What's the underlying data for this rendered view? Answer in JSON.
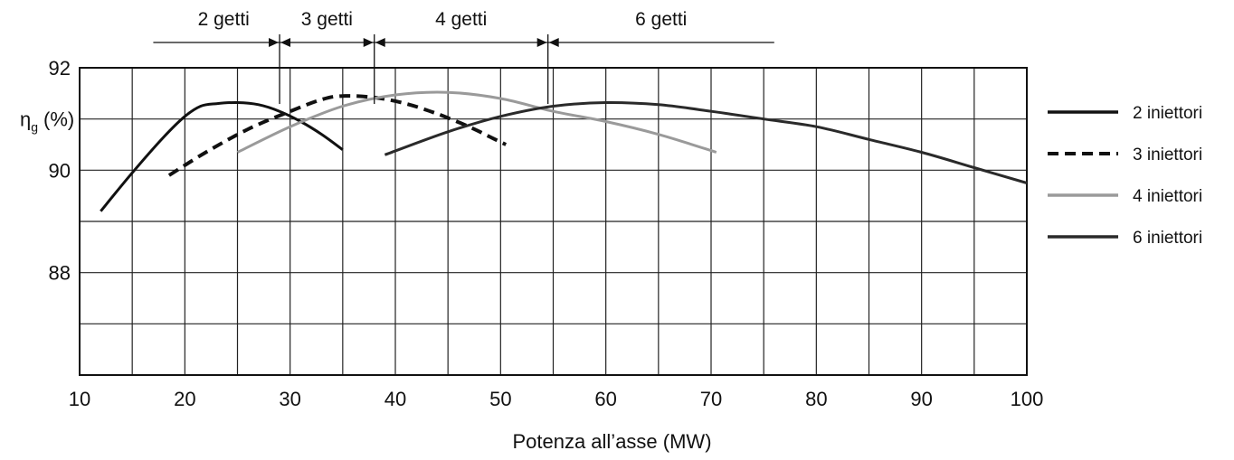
{
  "chart_data": {
    "type": "line",
    "title": "",
    "xlabel": "Potenza all’asse (MW)",
    "ylabel_main": "η",
    "ylabel_sub": "g",
    "ylabel_unit": "(%)",
    "xlim": [
      10,
      100
    ],
    "ylim": [
      86,
      92
    ],
    "x_ticks": [
      10,
      20,
      30,
      40,
      50,
      60,
      70,
      80,
      90,
      100
    ],
    "x_tick_labels": [
      "10",
      "20",
      "30",
      "40",
      "50",
      "60",
      "70",
      "80",
      "90",
      "100"
    ],
    "y_ticks": [
      88,
      90,
      92
    ],
    "y_tick_labels": [
      "88",
      "90",
      "92"
    ],
    "grid": true,
    "legend_position": "right",
    "series": [
      {
        "name": "2 iniettori",
        "style": "solid",
        "color": "#111111",
        "x": [
          12,
          15,
          18,
          20,
          21.5,
          23,
          25,
          27,
          29,
          31,
          33,
          35
        ],
        "y": [
          89.2,
          89.95,
          90.65,
          91.05,
          91.25,
          91.3,
          91.32,
          91.28,
          91.15,
          90.95,
          90.7,
          90.4
        ]
      },
      {
        "name": "3 iniettori",
        "style": "dashed",
        "color": "#111111",
        "x": [
          18.5,
          22,
          26,
          30,
          33,
          35,
          38,
          41,
          44,
          47,
          49,
          50.5
        ],
        "y": [
          89.9,
          90.35,
          90.8,
          91.15,
          91.38,
          91.45,
          91.42,
          91.3,
          91.1,
          90.85,
          90.65,
          90.5
        ]
      },
      {
        "name": "4 iniettori",
        "style": "solid",
        "color": "#9a9a9a",
        "x": [
          25,
          30,
          35,
          40,
          45,
          50,
          55,
          60,
          65,
          70.5
        ],
        "y": [
          90.35,
          90.85,
          91.25,
          91.47,
          91.52,
          91.4,
          91.15,
          90.95,
          90.7,
          90.35
        ]
      },
      {
        "name": "6 iniettori",
        "style": "solid",
        "color": "#2a2a2a",
        "x": [
          39,
          45,
          50,
          55,
          60,
          65,
          70,
          75,
          80,
          85,
          90,
          95,
          100
        ],
        "y": [
          90.3,
          90.75,
          91.05,
          91.25,
          91.32,
          91.28,
          91.15,
          91.0,
          90.85,
          90.6,
          90.35,
          90.05,
          89.75
        ]
      }
    ],
    "range_annotations": [
      {
        "label": "2 getti",
        "from": 17,
        "to": 29
      },
      {
        "label": "3 getti",
        "from": 29,
        "to": 38
      },
      {
        "label": "4 getti",
        "from": 38,
        "to": 54.5
      },
      {
        "label": "6 getti",
        "from": 54.5,
        "to": 76
      }
    ],
    "range_boundaries": [
      {
        "x": 29
      },
      {
        "x": 38
      },
      {
        "x": 54.5
      }
    ]
  }
}
